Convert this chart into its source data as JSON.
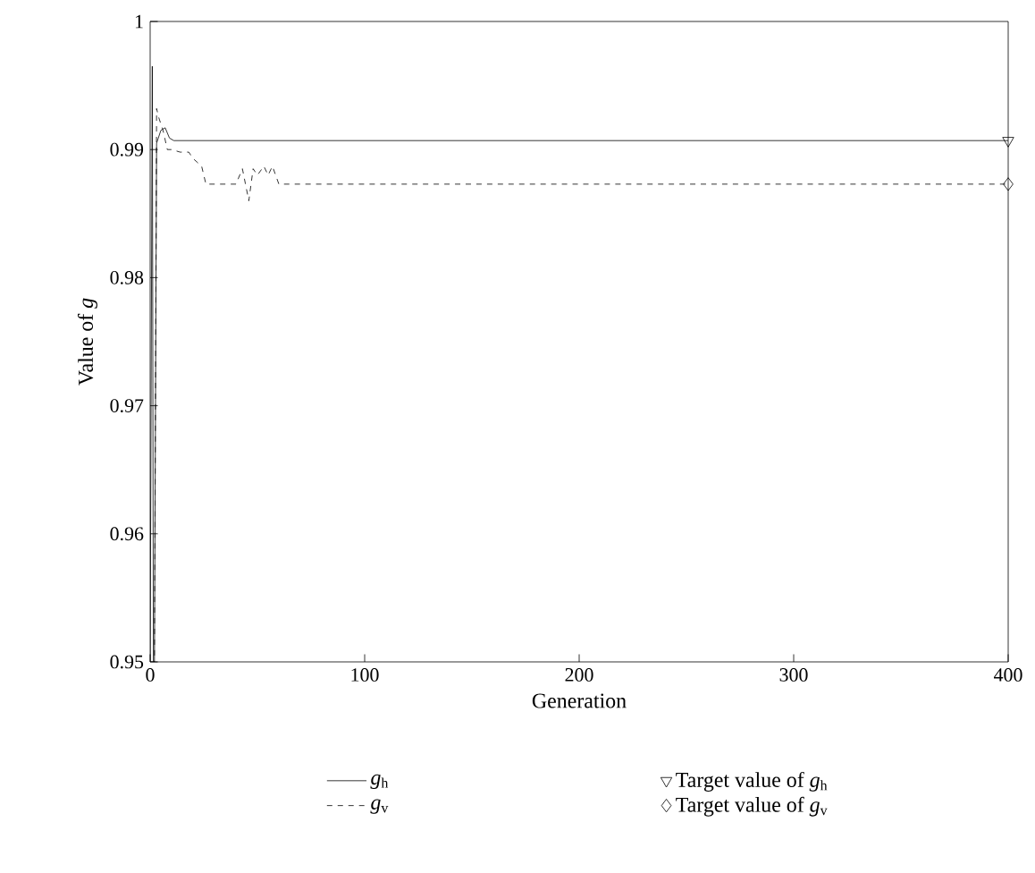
{
  "chart_data": {
    "type": "line",
    "xlabel": "Generation",
    "ylabel": "Value of *g*",
    "xlim": [
      0,
      400
    ],
    "ylim": [
      0.95,
      1
    ],
    "xticks": [
      0,
      100,
      200,
      300,
      400
    ],
    "yticks": [
      0.95,
      0.96,
      0.97,
      0.98,
      0.99,
      1
    ],
    "grid": false,
    "legend": "bottom",
    "series": [
      {
        "name": "*g*$_{h}$",
        "color": "#000000",
        "line_style": "solid",
        "x": [
          0,
          1,
          1.5,
          2,
          3,
          5,
          7,
          9,
          11,
          400
        ],
        "values": [
          0.95,
          0.9965,
          0.95,
          0.95,
          0.9905,
          0.9915,
          0.9917,
          0.9909,
          0.9907,
          0.9907
        ]
      },
      {
        "name": "Target value of *g*$_{h}$",
        "type": "scatter",
        "marker": "triangle",
        "color": "#000000",
        "x": [
          400
        ],
        "values": [
          0.9907
        ]
      },
      {
        "name": "*g*$_{v}$",
        "color": "#000000",
        "line_style": "dashed",
        "x": [
          0,
          2,
          3,
          4,
          6,
          8,
          10,
          14,
          18,
          20,
          22,
          24,
          26,
          28,
          40,
          43,
          46,
          48,
          50,
          53,
          55,
          57,
          60,
          400
        ],
        "values": [
          0.95,
          0.95,
          0.9932,
          0.9925,
          0.9915,
          0.99,
          0.99,
          0.9898,
          0.9898,
          0.9893,
          0.989,
          0.9887,
          0.9873,
          0.9873,
          0.9873,
          0.9885,
          0.986,
          0.9885,
          0.988,
          0.9887,
          0.988,
          0.9887,
          0.9873,
          0.9873
        ]
      },
      {
        "name": "Target value of *g*$_{v}$",
        "type": "scatter",
        "marker": "diamond",
        "color": "#000000",
        "x": [
          400
        ],
        "values": [
          0.9873
        ]
      }
    ]
  }
}
